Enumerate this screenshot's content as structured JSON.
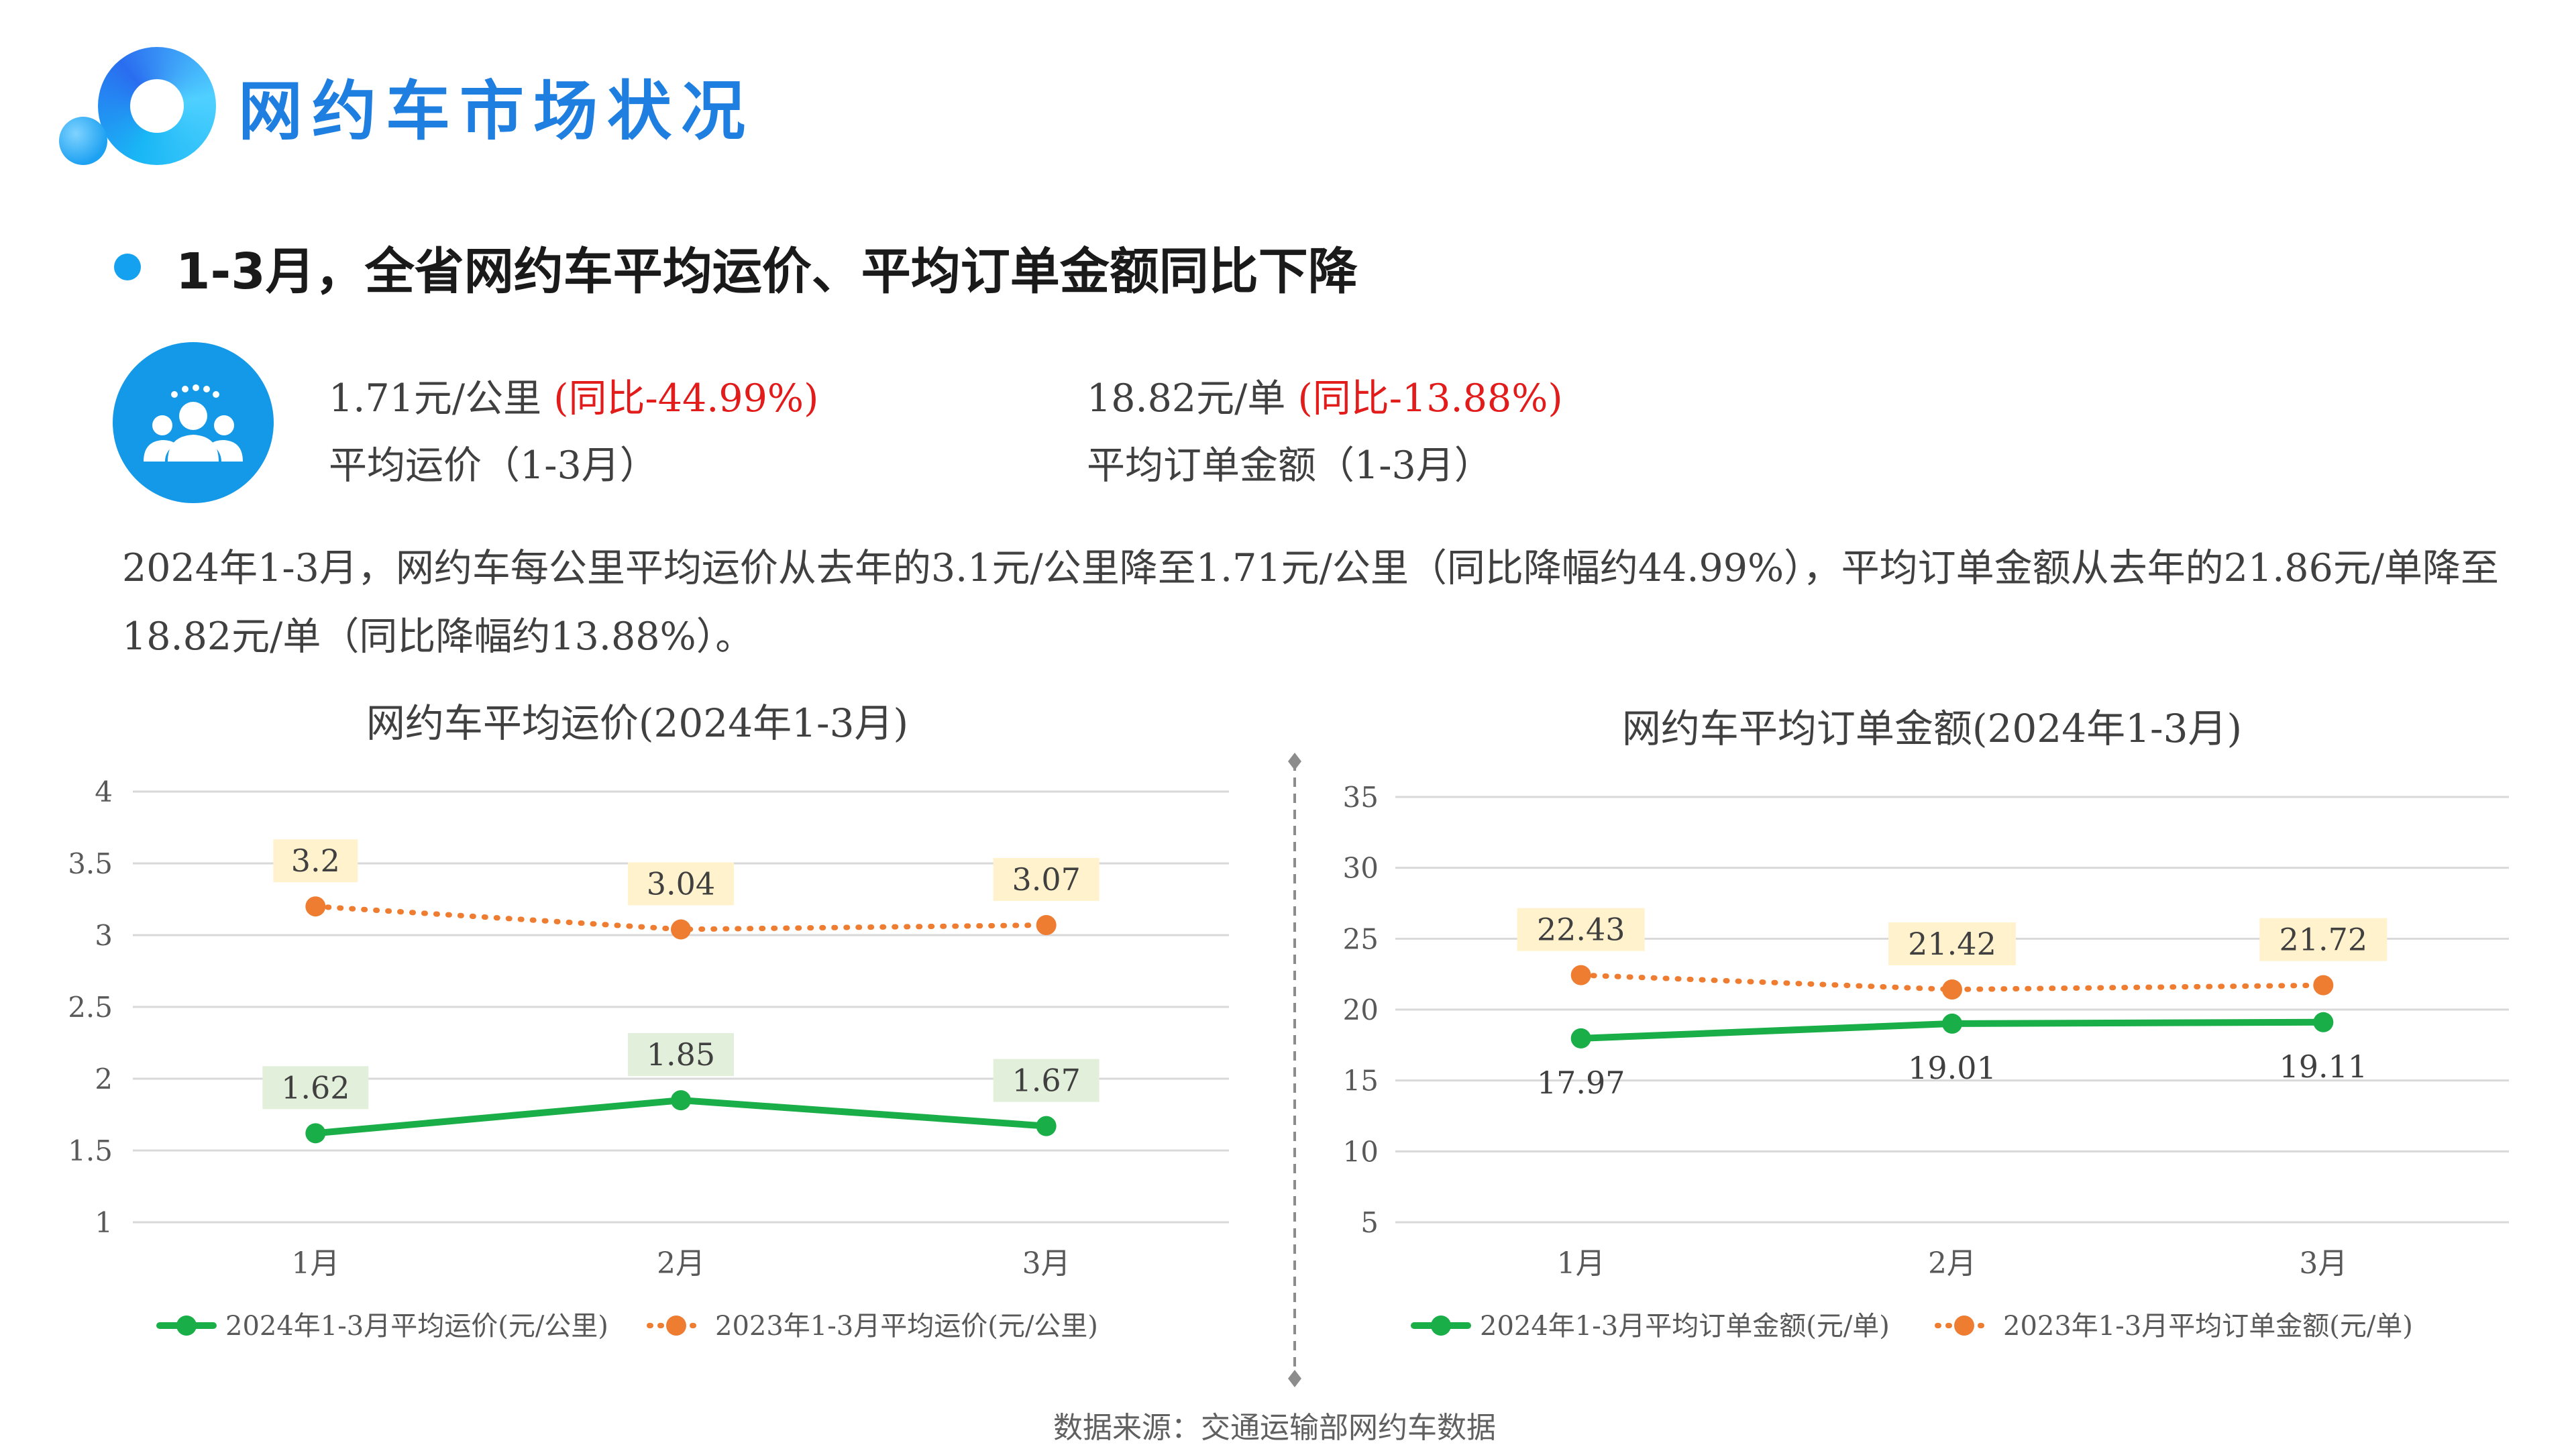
{
  "header": {
    "title": "网约车市场状况"
  },
  "subtitle": "1-3月，全省网约车平均运价、平均订单金额同比下降",
  "stats": [
    {
      "value": "1.71元/公里",
      "change": "(同比-44.99%)",
      "label": "平均运价（1-3月）"
    },
    {
      "value": "18.82元/单",
      "change": "(同比-13.88%)",
      "label": "平均订单金额（1-3月）"
    }
  ],
  "description": "2024年1-3月，网约车每公里平均运价从去年的3.1元/公里降至1.71元/公里（同比降幅约44.99%），平均订单金额从去年的21.86元/单降至18.82元/单（同比降幅约13.88%）。",
  "source": "数据来源：交通运输部网约车数据",
  "icons": {
    "people": "people-group-icon"
  },
  "colors": {
    "green": "#1aae48",
    "orange": "#ee7d32",
    "title_blue": "#1f7fe0",
    "red": "#e21b1b"
  },
  "chart_data": [
    {
      "type": "line",
      "title": "网约车平均运价(2024年1-3月)",
      "categories": [
        "1月",
        "2月",
        "3月"
      ],
      "yticks": [
        "1",
        "1.5",
        "2",
        "2.5",
        "3",
        "3.5",
        "4"
      ],
      "ylim": [
        1,
        4
      ],
      "grid": true,
      "legend": "bottom",
      "series": [
        {
          "name": "2024年1-3月平均运价(元/公里)",
          "values": [
            1.62,
            1.85,
            1.67
          ],
          "labels": [
            "1.62",
            "1.85",
            "1.67"
          ],
          "color": "#1aae48",
          "style": "solid",
          "label_bg": "#e2efda"
        },
        {
          "name": "2023年1-3月平均运价(元/公里)",
          "values": [
            3.2,
            3.04,
            3.07
          ],
          "labels": [
            "3.2",
            "3.04",
            "3.07"
          ],
          "color": "#ee7d32",
          "style": "dotted",
          "label_bg": "#fff2cc"
        }
      ]
    },
    {
      "type": "line",
      "title": "网约车平均订单金额(2024年1-3月)",
      "categories": [
        "1月",
        "2月",
        "3月"
      ],
      "yticks": [
        "5",
        "10",
        "15",
        "20",
        "25",
        "30",
        "35"
      ],
      "ylim": [
        5,
        35
      ],
      "grid": true,
      "legend": "bottom",
      "series": [
        {
          "name": "2024年1-3月平均订单金额(元/单)",
          "values": [
            17.97,
            19.01,
            19.11
          ],
          "labels": [
            "17.97",
            "19.01",
            "19.11"
          ],
          "color": "#1aae48",
          "style": "solid",
          "label_bg": ""
        },
        {
          "name": "2023年1-3月平均订单金额(元/单)",
          "values": [
            22.43,
            21.42,
            21.72
          ],
          "labels": [
            "22.43",
            "21.42",
            "21.72"
          ],
          "color": "#ee7d32",
          "style": "dotted",
          "label_bg": "#fff2cc"
        }
      ]
    }
  ]
}
